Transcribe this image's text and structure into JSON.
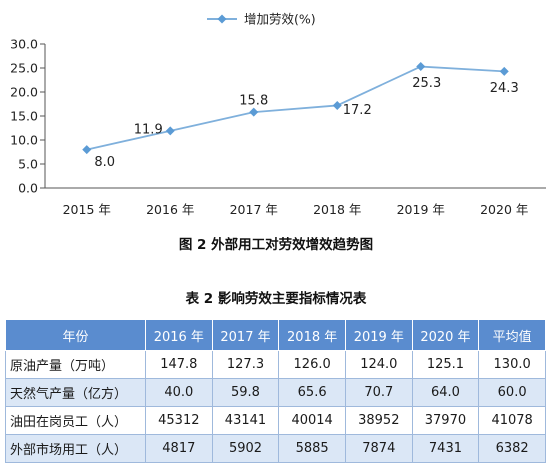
{
  "chart_data": {
    "type": "line",
    "title": "",
    "xlabel": "",
    "ylabel": "",
    "x": [
      "2015 年",
      "2016 年",
      "2017 年",
      "2018 年",
      "2019 年",
      "2020 年"
    ],
    "series": [
      {
        "name": "增加劳效(%)",
        "values": [
          8.0,
          11.9,
          15.8,
          17.2,
          25.3,
          24.3
        ]
      }
    ],
    "data_labels": [
      "8.0",
      "11.9",
      "15.8",
      "17.2",
      "25.3",
      "24.3"
    ],
    "ylim": [
      0,
      30
    ],
    "yticks": [
      "0.0",
      "5.0",
      "10.0",
      "15.0",
      "20.0",
      "25.0",
      "30.0"
    ],
    "grid": false,
    "legend_position": "top-center",
    "colors": {
      "line": "#7fb0dc",
      "marker": "#5b9bd5",
      "axis": "#555555"
    }
  },
  "figure_caption": "图 2   外部用工对劳效增效趋势图",
  "table": {
    "caption": "表 2   影响劳效主要指标情况表",
    "header": [
      "年份",
      "2016 年",
      "2017 年",
      "2018 年",
      "2019 年",
      "2020 年",
      "平均值"
    ],
    "rows": [
      [
        "原油产量（万吨）",
        "147.8",
        "127.3",
        "126.0",
        "124.0",
        "125.1",
        "130.0"
      ],
      [
        "天然气产量（亿方）",
        "40.0",
        "59.8",
        "65.6",
        "70.7",
        "64.0",
        "60.0"
      ],
      [
        "油田在岗员工（人）",
        "45312",
        "43141",
        "40014",
        "38952",
        "37970",
        "41078"
      ],
      [
        "外部市场用工（人）",
        "4817",
        "5902",
        "5885",
        "7874",
        "7431",
        "6382"
      ]
    ],
    "colors": {
      "header_bg": "#5a8ccf",
      "alt_row_bg": "#dbe7f6",
      "border": "#9fb9dc"
    }
  }
}
